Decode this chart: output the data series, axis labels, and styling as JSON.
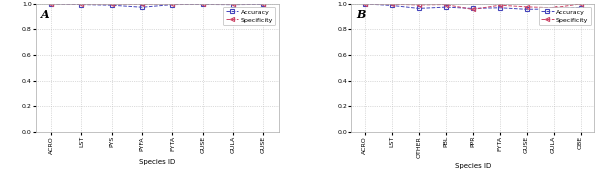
{
  "panel_A": {
    "label": "A",
    "species": [
      "ACRO",
      "LST",
      "PYS",
      "PYFA",
      "FYTA",
      "GUSE",
      "GULA",
      "GUSE"
    ],
    "accuracy": [
      0.998,
      0.993,
      0.988,
      0.972,
      0.993,
      0.994,
      0.992,
      0.995
    ],
    "specificity": [
      0.999,
      0.997,
      0.996,
      0.996,
      0.997,
      0.998,
      0.997,
      0.999
    ]
  },
  "panel_B": {
    "label": "B",
    "species": [
      "ACRO",
      "LST",
      "OTHER",
      "PBL",
      "PPR",
      "FYTA",
      "GUSE",
      "GULA",
      "OBE"
    ],
    "accuracy": [
      0.998,
      0.986,
      0.963,
      0.973,
      0.963,
      0.968,
      0.956,
      0.958,
      0.97
    ],
    "specificity": [
      0.999,
      0.995,
      0.99,
      0.993,
      0.955,
      0.988,
      0.975,
      0.968,
      0.998
    ]
  },
  "accuracy_color": "#4444bb",
  "specificity_color": "#cc4466",
  "accuracy_linestyle": "--",
  "specificity_linestyle": "--",
  "accuracy_marker": "s",
  "specificity_marker": "<",
  "accuracy_markerfacecolor": "none",
  "specificity_markerfacecolor": "none",
  "xlabel": "Species ID",
  "ylim": [
    0.0,
    1.0
  ],
  "yticks_A": [
    0.0,
    0.2,
    0.4,
    0.6,
    0.8,
    1.0
  ],
  "yticks_B": [
    0.0,
    0.2,
    0.4,
    0.6,
    0.8,
    1.0
  ],
  "legend_accuracy": "Accuracy",
  "legend_specificity": "Specificity",
  "bg_color": "#ffffff",
  "grid_color": "#bbbbbb",
  "linewidth": 0.7,
  "markersize": 3.0,
  "tick_fontsize": 4.5,
  "xlabel_fontsize": 5.0,
  "label_fontsize": 8.0,
  "legend_fontsize": 4.5
}
